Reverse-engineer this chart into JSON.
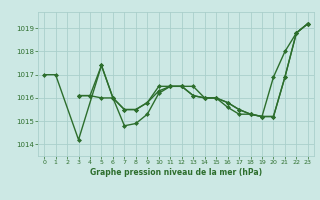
{
  "background_color": "#cce8e4",
  "grid_color": "#aacfcb",
  "line_color": "#2d6e2d",
  "title": "Graphe pression niveau de la mer (hPa)",
  "xlim": [
    -0.5,
    23.5
  ],
  "ylim": [
    1013.5,
    1019.7
  ],
  "yticks": [
    1014,
    1015,
    1016,
    1017,
    1018,
    1019
  ],
  "xticks": [
    0,
    1,
    2,
    3,
    4,
    5,
    6,
    7,
    8,
    9,
    10,
    11,
    12,
    13,
    14,
    15,
    16,
    17,
    18,
    19,
    20,
    21,
    22,
    23
  ],
  "series": [
    {
      "x": [
        0,
        1,
        3,
        5,
        6,
        7,
        8,
        9,
        10,
        11,
        12,
        13,
        14,
        15,
        16,
        17,
        18,
        19,
        20,
        21,
        22,
        23
      ],
      "y": [
        1017.0,
        1017.0,
        1014.2,
        1017.4,
        1016.0,
        1015.5,
        1015.5,
        1015.8,
        1016.5,
        1016.5,
        1016.5,
        1016.1,
        1016.0,
        1016.0,
        1015.8,
        1015.5,
        1015.3,
        1015.2,
        1016.9,
        1018.0,
        1018.8,
        1019.2
      ]
    },
    {
      "x": [
        3,
        4,
        5,
        6,
        7,
        8,
        9,
        10,
        11,
        12,
        13,
        14,
        15,
        16,
        17,
        18,
        19,
        20,
        21,
        22,
        23
      ],
      "y": [
        1016.1,
        1016.1,
        1016.0,
        1016.0,
        1015.5,
        1015.5,
        1015.8,
        1016.3,
        1016.5,
        1016.5,
        1016.5,
        1016.0,
        1016.0,
        1015.8,
        1015.5,
        1015.3,
        1015.2,
        1015.2,
        1016.9,
        1018.8,
        1019.2
      ]
    },
    {
      "x": [
        3,
        4,
        5,
        6,
        7,
        8,
        9,
        10,
        11,
        12,
        13,
        14,
        15,
        16,
        17,
        18,
        19,
        20,
        21,
        22,
        23
      ],
      "y": [
        1016.1,
        1016.1,
        1017.4,
        1016.0,
        1014.8,
        1014.9,
        1015.3,
        1016.2,
        1016.5,
        1016.5,
        1016.1,
        1016.0,
        1016.0,
        1015.6,
        1015.3,
        1015.3,
        1015.2,
        1015.2,
        1016.9,
        1018.8,
        1019.2
      ]
    }
  ],
  "marker": "D",
  "marker_size": 2.0,
  "line_width": 1.0
}
